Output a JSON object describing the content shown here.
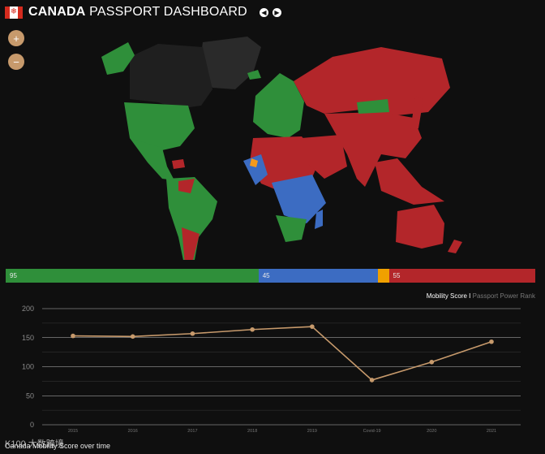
{
  "header": {
    "title_bold": "CANADA",
    "title_rest": " PASSPORT DASHBOARD",
    "flag_icon": "canada-flag-icon",
    "prev_icon": "arrow-left-icon",
    "next_icon": "arrow-right-icon"
  },
  "map_controls": {
    "zoom_in": "+",
    "zoom_out": "−"
  },
  "colors": {
    "visa_free": "#2f8f3a",
    "visa_on_arrival": "#3c6cc2",
    "eta": "#f0a000",
    "visa_required": "#b3262a",
    "home": "#f59a1b",
    "unknown": "#1f1f1f",
    "line": "#c79a6c"
  },
  "summary_bar": [
    {
      "label": "95",
      "value": 95,
      "color": "#2f8f3a"
    },
    {
      "label": "45",
      "value": 45,
      "color": "#3c6cc2"
    },
    {
      "label": "",
      "value": 4,
      "color": "#f0a000"
    },
    {
      "label": "55",
      "value": 55,
      "color": "#b3262a"
    }
  ],
  "legend": {
    "active": "Mobility Score",
    "sep": " I ",
    "inactive": "Passport Power Rank"
  },
  "chart_data": {
    "type": "line",
    "title": "",
    "xlabel": "",
    "ylabel": "",
    "categories": [
      "2015",
      "2016",
      "2017",
      "2018",
      "2019",
      "Covid-19",
      "2020",
      "2021"
    ],
    "values": [
      153,
      152,
      157,
      164,
      169,
      77,
      108,
      143
    ],
    "ylim": [
      0,
      200
    ],
    "yticks": [
      0,
      50,
      100,
      150,
      200
    ],
    "grid": true
  },
  "caption": "Canada Mobility Score over time",
  "watermark": "K100 大数跨境"
}
